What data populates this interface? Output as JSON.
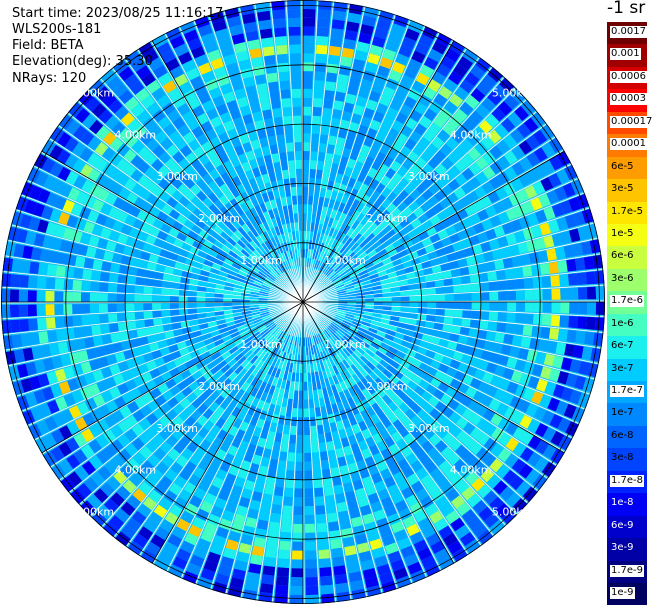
{
  "header": {
    "start_time": "Start time: 2023/08/25 11:16:17",
    "instrument": "WLS200s-181",
    "field": "Field: BETA",
    "elevation": "Elevation(deg): 35.30",
    "nrays": "NRays: 120"
  },
  "colorbar": {
    "unit_label": "-1 sr",
    "entries": [
      {
        "label": "0.0017",
        "color": "#6e0000",
        "text_bg": "#ffffff"
      },
      {
        "label": "0.001",
        "color": "#a00000",
        "text_bg": "#ffffff"
      },
      {
        "label": "0.0006",
        "color": "#d40000",
        "text_bg": "#ffffff"
      },
      {
        "label": "0.0003",
        "color": "#ff0000",
        "text_bg": "#ffffff"
      },
      {
        "label": "0.00017",
        "color": "#ff4a00",
        "text_bg": "#ffffff"
      },
      {
        "label": "0.0001",
        "color": "#ff7a00",
        "text_bg": "#ffffff"
      },
      {
        "label": "6e-5",
        "color": "#ff9d00",
        "text_bg": "none"
      },
      {
        "label": "3e-5",
        "color": "#ffc400",
        "text_bg": "none"
      },
      {
        "label": "1.7e-5",
        "color": "#ffe600",
        "text_bg": "none"
      },
      {
        "label": "1e-5",
        "color": "#f4ff14",
        "text_bg": "none"
      },
      {
        "label": "6e-6",
        "color": "#c9ff3e",
        "text_bg": "none"
      },
      {
        "label": "3e-6",
        "color": "#9cff6b",
        "text_bg": "none"
      },
      {
        "label": "1.7e-6",
        "color": "#72ff95",
        "text_bg": "#ffffff"
      },
      {
        "label": "1e-6",
        "color": "#45ffc2",
        "text_bg": "none"
      },
      {
        "label": "6e-7",
        "color": "#1cf0ee",
        "text_bg": "none"
      },
      {
        "label": "3e-7",
        "color": "#00ccff",
        "text_bg": "none"
      },
      {
        "label": "1.7e-7",
        "color": "#00a8ff",
        "text_bg": "#ffffff"
      },
      {
        "label": "1e-7",
        "color": "#0088ff",
        "text_bg": "none"
      },
      {
        "label": "6e-8",
        "color": "#0064ff",
        "text_bg": "none"
      },
      {
        "label": "3e-8",
        "color": "#0044ff",
        "text_bg": "none"
      },
      {
        "label": "1.7e-8",
        "color": "#0022ff",
        "text_bg": "#ffffff"
      },
      {
        "label": "1e-8",
        "color": "#0000f5",
        "text_bg": "none"
      },
      {
        "label": "6e-9",
        "color": "#0000cc",
        "text_bg": "none"
      },
      {
        "label": "3e-9",
        "color": "#0000a6",
        "text_bg": "none"
      },
      {
        "label": "1.7e-9",
        "color": "#000080",
        "text_bg": "#ffffff"
      },
      {
        "label": "1e-9",
        "color": "#000060",
        "text_bg": "#ffffff"
      }
    ]
  },
  "plot": {
    "range_ring_labels": [
      "1.00km",
      "2.00km",
      "3.00km",
      "4.00km",
      "5.00km"
    ],
    "background_color": "#1fc4ee"
  }
}
